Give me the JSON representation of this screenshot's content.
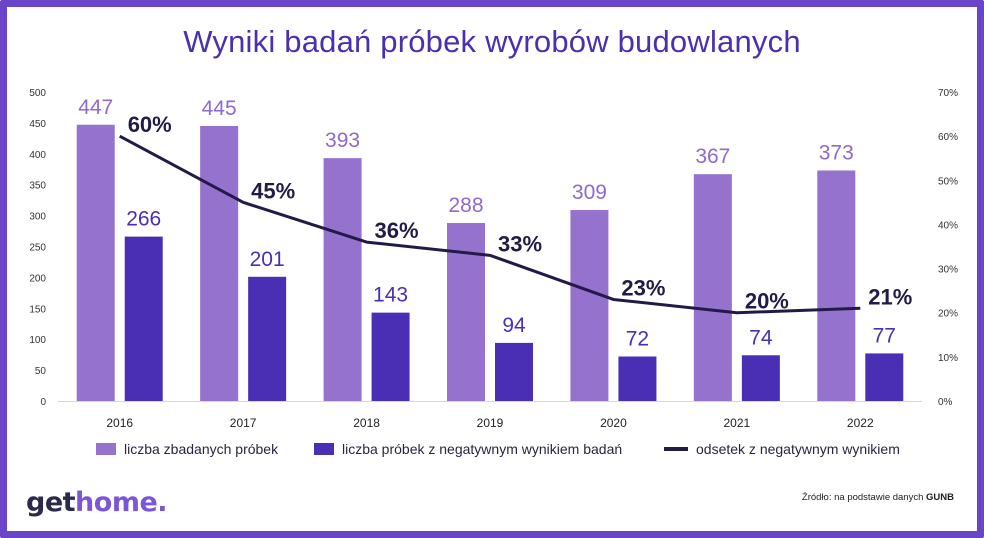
{
  "title": "Wyniki badań próbek wyrobów budowlanych",
  "legend": {
    "tested": "liczba zbadanych próbek",
    "negative": "liczba próbek z negatywnym wynikiem badań",
    "rate": "odsetek z negatywnym wynikiem"
  },
  "logo": {
    "part1": "get",
    "part2": "home."
  },
  "source": {
    "prefix": "Źródło: na podstawie danych ",
    "org": "GUNB"
  },
  "colors": {
    "tested": "#9672cf",
    "negative": "#4a2fb5",
    "rate": "#231a48",
    "frame": "#6a45c8"
  },
  "chart_data": {
    "type": "bar",
    "title": "Wyniki badań próbek wyrobów budowlanych",
    "categories": [
      "2016",
      "2017",
      "2018",
      "2019",
      "2020",
      "2021",
      "2022"
    ],
    "series": [
      {
        "name": "liczba zbadanych próbek",
        "type": "bar",
        "axis": "left",
        "values": [
          447,
          445,
          393,
          288,
          309,
          367,
          373
        ]
      },
      {
        "name": "liczba próbek z negatywnym wynikiem badań",
        "type": "bar",
        "axis": "left",
        "values": [
          266,
          201,
          143,
          94,
          72,
          74,
          77
        ]
      },
      {
        "name": "odsetek z negatywnym wynikiem",
        "type": "line",
        "axis": "right",
        "values": [
          60,
          45,
          36,
          33,
          23,
          20,
          21
        ],
        "labels": [
          "60%",
          "45%",
          "36%",
          "33%",
          "23%",
          "20%",
          "21%"
        ]
      }
    ],
    "yleft": {
      "lim": [
        0,
        500
      ],
      "ticks": [
        "0",
        "50",
        "100",
        "150",
        "200",
        "250",
        "300",
        "350",
        "400",
        "450",
        "500"
      ]
    },
    "yright": {
      "lim": [
        0,
        70
      ],
      "ticks": [
        "0%",
        "10%",
        "20%",
        "30%",
        "40%",
        "50%",
        "60%",
        "70%"
      ]
    },
    "grid": false,
    "legend_position": "bottom"
  }
}
